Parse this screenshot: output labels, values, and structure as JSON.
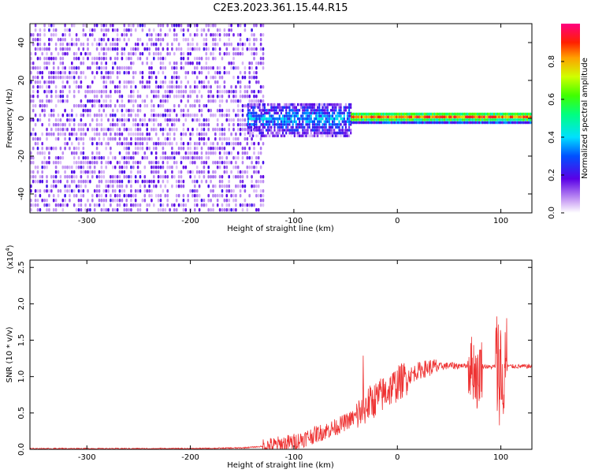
{
  "title": "C2E3.2023.361.15.44.R15",
  "chart_data": [
    {
      "type": "heatmap",
      "xlabel": "Height of straight line (km)",
      "ylabel": "Frequency (Hz)",
      "xlim": [
        -355,
        130
      ],
      "ylim": [
        -50,
        50
      ],
      "xticks": [
        "-300",
        "-200",
        "-100",
        "0",
        "100"
      ],
      "yticks": [
        "-40",
        "-20",
        "0",
        "20",
        "40"
      ],
      "colorbar": {
        "label": "Normalized spectral amplitude",
        "range": [
          0.0,
          1.0
        ],
        "ticks": [
          "0.0",
          "0.2",
          "0.4",
          "0.6",
          "0.8"
        ]
      },
      "regions": [
        {
          "x": [
            -355,
            -130
          ],
          "freq_range": [
            -50,
            50
          ],
          "amplitude": 0.1,
          "description_pattern": "broadband"
        },
        {
          "x": [
            -145,
            -45
          ],
          "freq_range": [
            -10,
            8
          ],
          "amplitude": 0.35
        },
        {
          "x": [
            -45,
            130
          ],
          "freq_range": [
            -3,
            3
          ],
          "amplitude": 0.85
        }
      ]
    },
    {
      "type": "line",
      "xlabel": "Height of straight line (km)",
      "ylabel": "SNR (10 * v/v)",
      "multiplier": "(x10",
      "multiplier_exp": "4",
      "multiplier_close": ")",
      "xlim": [
        -355,
        130
      ],
      "ylim": [
        0,
        2.6
      ],
      "xticks": [
        "-300",
        "-200",
        "-100",
        "0",
        "100"
      ],
      "yticks": [
        "0.0",
        "0.5",
        "1.0",
        "1.5",
        "2.0",
        "2.5"
      ],
      "series": [
        {
          "color": "#ee3333",
          "x": [
            -355,
            -300,
            -250,
            -200,
            -150,
            -120,
            -100,
            -80,
            -60,
            -40,
            -30,
            -20,
            -10,
            0,
            10,
            20,
            30,
            40,
            50,
            60,
            70,
            75,
            78,
            80,
            90,
            95,
            100,
            102,
            104,
            110,
            120,
            130
          ],
          "y": [
            0.01,
            0.01,
            0.01,
            0.01,
            0.02,
            0.05,
            0.1,
            0.2,
            0.3,
            0.45,
            0.6,
            0.7,
            0.8,
            0.9,
            1.0,
            1.08,
            1.12,
            1.14,
            1.15,
            1.15,
            1.15,
            1.1,
            0.9,
            1.15,
            1.13,
            1.14,
            1.12,
            1.2,
            1.15,
            1.14,
            1.14,
            1.14
          ]
        }
      ]
    }
  ]
}
